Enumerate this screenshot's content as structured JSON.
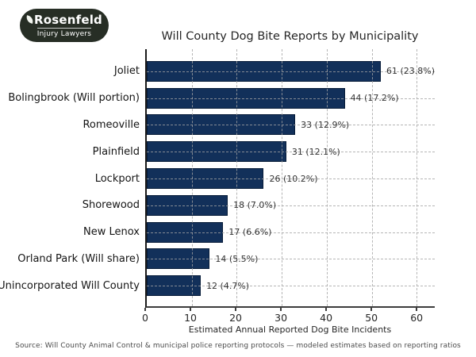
{
  "logo": {
    "line1": "Rosenfeld",
    "line2": "Injury Lawyers",
    "bg_color": "#272e25",
    "icon": "leaf-icon"
  },
  "chart_data": {
    "type": "bar",
    "orientation": "horizontal",
    "title": "Will County Dog Bite Reports by Municipality",
    "xlabel": "Estimated Annual Reported Dog Bite Incidents",
    "ylabel": "",
    "categories": [
      "Joliet",
      "Bolingbrook (Will portion)",
      "Romeoville",
      "Plainfield",
      "Lockport",
      "Shorewood",
      "New Lenox",
      "Orland Park (Will share)",
      "Unincorporated Will County"
    ],
    "values": [
      61,
      44,
      33,
      31,
      26,
      18,
      17,
      14,
      12
    ],
    "percentages": [
      23.8,
      17.2,
      12.9,
      12.1,
      10.2,
      7.0,
      6.6,
      5.5,
      4.7
    ],
    "value_labels": [
      "61 (23.8%)",
      "44 (17.2%)",
      "33 (12.9%)",
      "31 (12.1%)",
      "26 (10.2%)",
      "18 (7.0%)",
      "17 (6.6%)",
      "14 (5.5%)",
      "12 (4.7%)"
    ],
    "xticks": [
      0,
      10,
      20,
      30,
      40,
      50,
      60
    ],
    "xlim": [
      0,
      64
    ],
    "grid": "dashed",
    "legend_position": "none",
    "bar_color": "#12305a",
    "grid_color": "#a3a3a3",
    "text_color": "#262626"
  },
  "footer": {
    "source": "Source: Will County Animal Control & municipal police reporting protocols — modeled estimates based on reporting ratios"
  }
}
